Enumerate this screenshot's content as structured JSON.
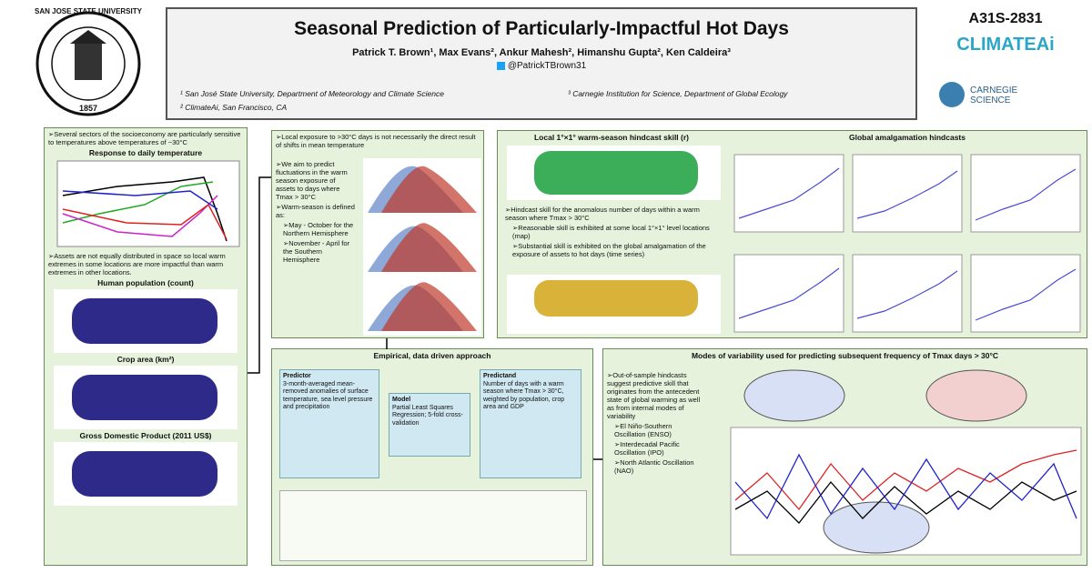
{
  "header": {
    "title": "Seasonal Prediction of Particularly-Impactful Hot Days",
    "authors": "Patrick T. Brown¹, Max Evans², Ankur Mahesh², Himanshu Gupta², Ken Caldeira³",
    "handle": "@PatrickTBrown31",
    "affiliations": [
      "¹ San José State University, Department of Meteorology and Climate Science",
      "³ Carnegie Institution for Science, Department of Global Ecology",
      "² ClimateAi, San Francisco, CA"
    ],
    "poster_id": "A31S-2831",
    "logo_climateai": "CLIMATEAi",
    "logo_carnegie": "CARNEGIE SCIENCE",
    "logo_sjsu": "SAN JOSE STATE UNIVERSITY",
    "logo_year": "1857"
  },
  "left": {
    "bullet1": "Several sectors of the socioeconomy are particularly sensitive to temperatures above temperatures of ~30°C",
    "chart_title": "Response to daily temperature",
    "bullet2": "Assets are not equally distributed in space so local warm extremes in some locations are more impactful than warm extremes in other locations.",
    "maps": [
      "Human population (count)",
      "Crop area (km²)",
      "Gross Domestic Product (2011 US$)"
    ]
  },
  "mid_top": {
    "heading": "Local exposure to >30°C days is not necessarily the direct result of shifts in mean temperature",
    "bullets": [
      "We aim to predict fluctuations in the warm season exposure of assets to days where Tmax > 30°C",
      "Warm-season is defined as:"
    ],
    "sub_bullets": [
      "May - October for the Northern Hemisphere",
      "November - April for the Southern Hemisphere"
    ]
  },
  "right_top": {
    "map_title": "Local 1°×1° warm-season hindcast skill (r)",
    "ts_title": "Global amalgamation hindcasts",
    "bullets": [
      "Hindcast skill for the anomalous number of days within a warm season where Tmax > 30°C"
    ],
    "sub_bullets": [
      "Reasonable skill is exhibited at some local 1°×1° level locations (map)",
      "Substantial skill is exhibited on the global amalgamation of the exposure of assets to hot days (time series)"
    ]
  },
  "mid_bottom": {
    "title": "Empirical, data driven approach",
    "predictor_title": "Predictor",
    "predictor_text": "3-month-averaged mean-removed anomalies of surface temperature, sea level pressure and precipitation",
    "model_title": "Model",
    "model_text": "Partial Least Squares Regression; 5-fold cross-validation",
    "predictand_title": "Predictand",
    "predictand_text": "Number of days with a warm season where Tmax > 30°C, weighted by population, crop area and GDP"
  },
  "right_bottom": {
    "title": "Modes of variability used for predicting subsequent frequency of Tmax days > 30°C",
    "bullet": "Out-of-sample hindcasts suggest predictive skill that originates from the antecedent state of global warming as well as from internal modes of variability",
    "modes": [
      "El Niño-Southern Oscillation (ENSO)",
      "Interdecadal Pacific Oscillation (IPO)",
      "North Atlantic Oscillation (NAO)"
    ]
  }
}
